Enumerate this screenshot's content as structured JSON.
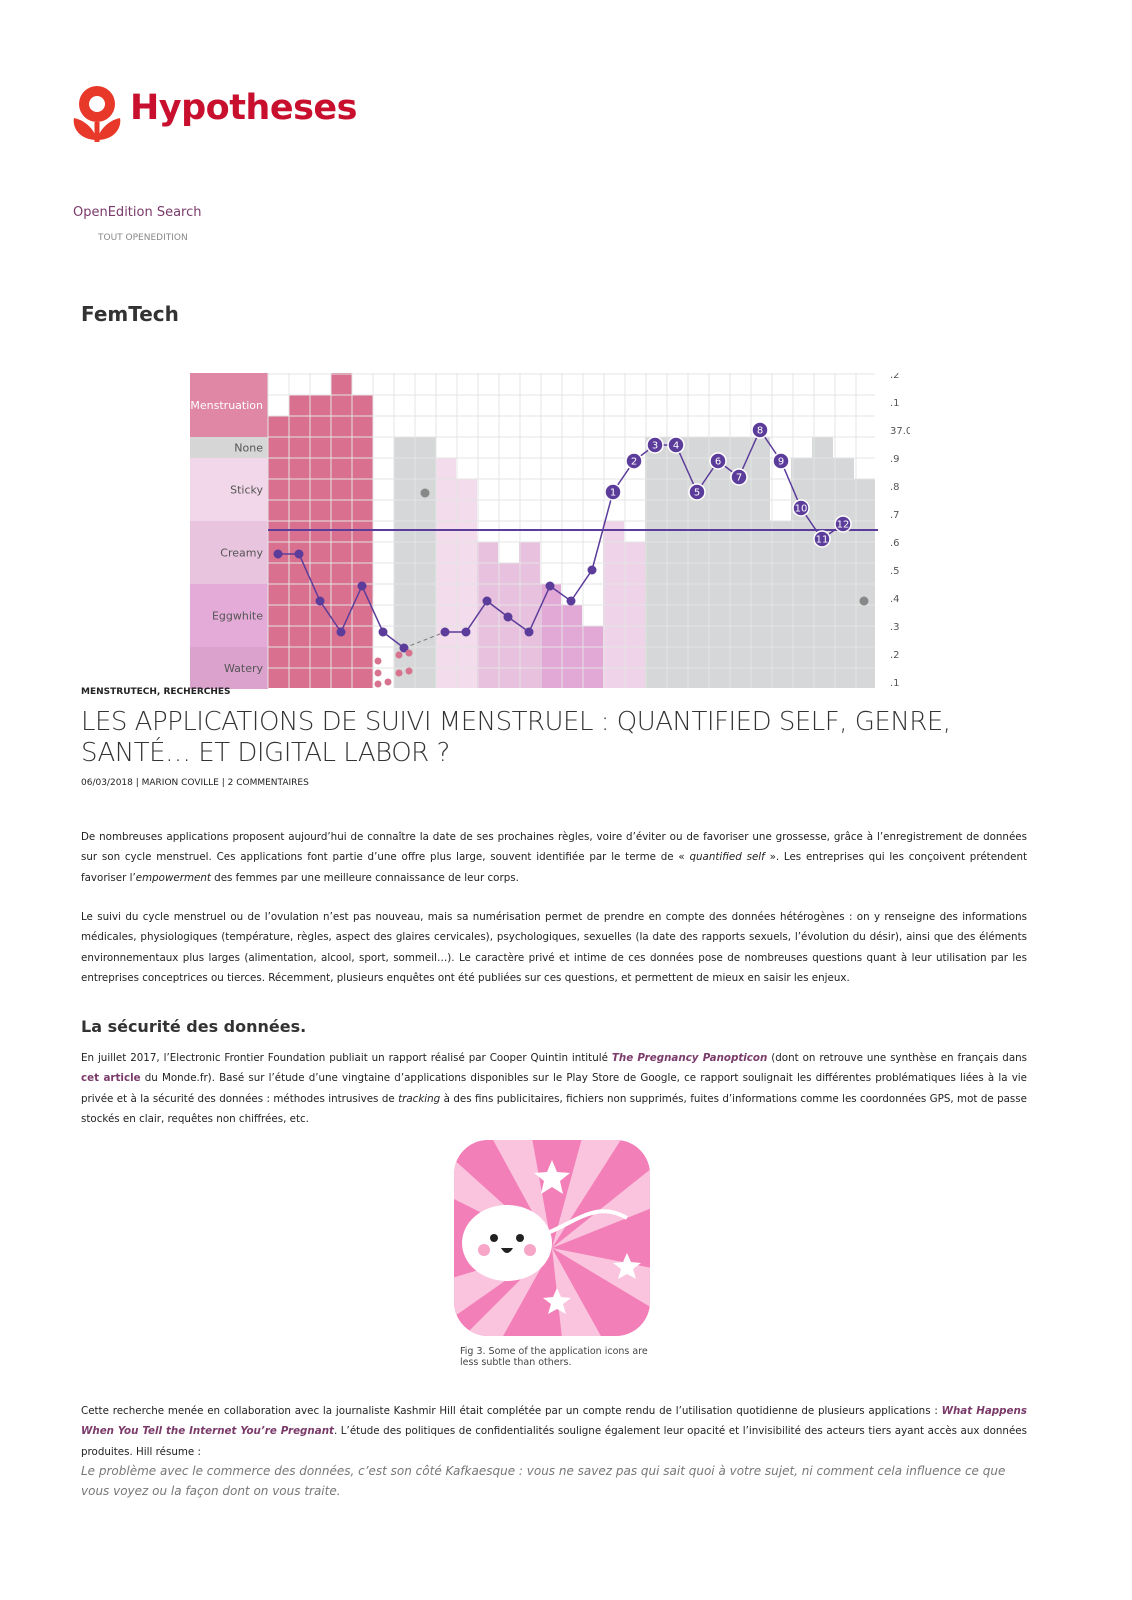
{
  "header": {
    "logo_text": "Hypotheses",
    "search_label": "OpenEdition Search",
    "search_scope": "TOUT OPENEDITION"
  },
  "blog_title": "FemTech",
  "figure_chart": {
    "row_labels": [
      "Menstruation",
      "None",
      "Sticky",
      "Creamy",
      "Eggwhite",
      "Watery"
    ],
    "temp_labels": [
      ".2",
      ".1",
      "37.0",
      ".9",
      ".8",
      ".7",
      ".6",
      ".5",
      ".4",
      ".3",
      ".2",
      ".1"
    ],
    "point_labels": [
      "1",
      "2",
      "3",
      "4",
      "5",
      "6",
      "7",
      "8",
      "9",
      "10",
      "11",
      "12"
    ]
  },
  "article": {
    "categories": "MENSTRUTECH, RECHERCHES",
    "title": "LES APPLICATIONS DE SUIVI MENSTRUEL : QUANTIFIED SELF, GENRE, SANTÉ… ET DIGITAL LABOR ?",
    "meta": "06/03/2018 | MARION COVILLE | 2 COMMENTAIRES",
    "p1": [
      "De nombreuses applications proposent aujourd’hui  de connaître la date de ses prochaines règles, voire d’éviter ou de favoriser une grossesse, grâce à l’enregistrement de données sur son cycle menstruel. Ces applications font partie d’une offre plus large, souvent identifiée par le terme de « ",
      "quantified self",
      " ». Les entreprises qui les conçoivent prétendent favoriser l’",
      "empowerment",
      " des femmes par une meilleure connaissance de leur corps."
    ],
    "p2": "Le suivi du cycle menstruel ou de l’ovulation n’est pas nouveau, mais sa numérisation permet de prendre en compte des données hétérogènes : on y renseigne des informations médicales, physiologiques (température, règles, aspect des glaires cervicales), psychologiques, sexuelles (la date des rapports sexuels, l’évolution du désir), ainsi que des éléments environnementaux plus larges (alimentation, alcool, sport, sommeil…). Le caractère privé et intime de ces données pose de nombreuses questions quant à leur utilisation par les entreprises conceptrices ou tierces. Récemment, plusieurs enquêtes ont été publiées sur ces questions, et permettent de mieux en saisir les enjeux.",
    "h2": "La sécurité des données.",
    "p3": [
      "En juillet 2017, l’Electronic Frontier Foundation publiait un rapport réalisé par Cooper Quintin intitulé ",
      "The Pregnancy Panopticon",
      " (dont on retrouve une synthèse en français dans ",
      "cet article",
      " du Monde.fr). Basé sur l’étude d’une vingtaine d’applications disponibles sur le Play Store de Google, ce rapport soulignait les différentes problématiques liées à la vie privée et à la sécurité des données : méthodes intrusives de ",
      "tracking",
      " à des fins publicitaires, fichiers non supprimés, fuites d’informations comme les coordonnées GPS, mot de passe stockés en clair, requêtes non chiffrées, etc."
    ],
    "figure_caption": "Fig 3. Some of the application icons are less subtle than others.",
    "p4": [
      "Cette recherche menée en collaboration avec la journaliste Kashmir Hill était complétée par un compte rendu de l’utilisation quotidienne de plusieurs applications : ",
      "What Happens When You Tell the Internet You’re Pregnant",
      ". L’étude des politiques de confidentialités souligne également leur opacité et l’invisibilité des acteurs tiers ayant accès aux données produites. Hill résume :"
    ],
    "quote": "Le problème avec le commerce des données, c’est son côté Kafkaesque : vous ne savez pas qui sait quoi à votre sujet, ni comment cela influence ce que vous voyez ou la façon dont on vous traite."
  }
}
